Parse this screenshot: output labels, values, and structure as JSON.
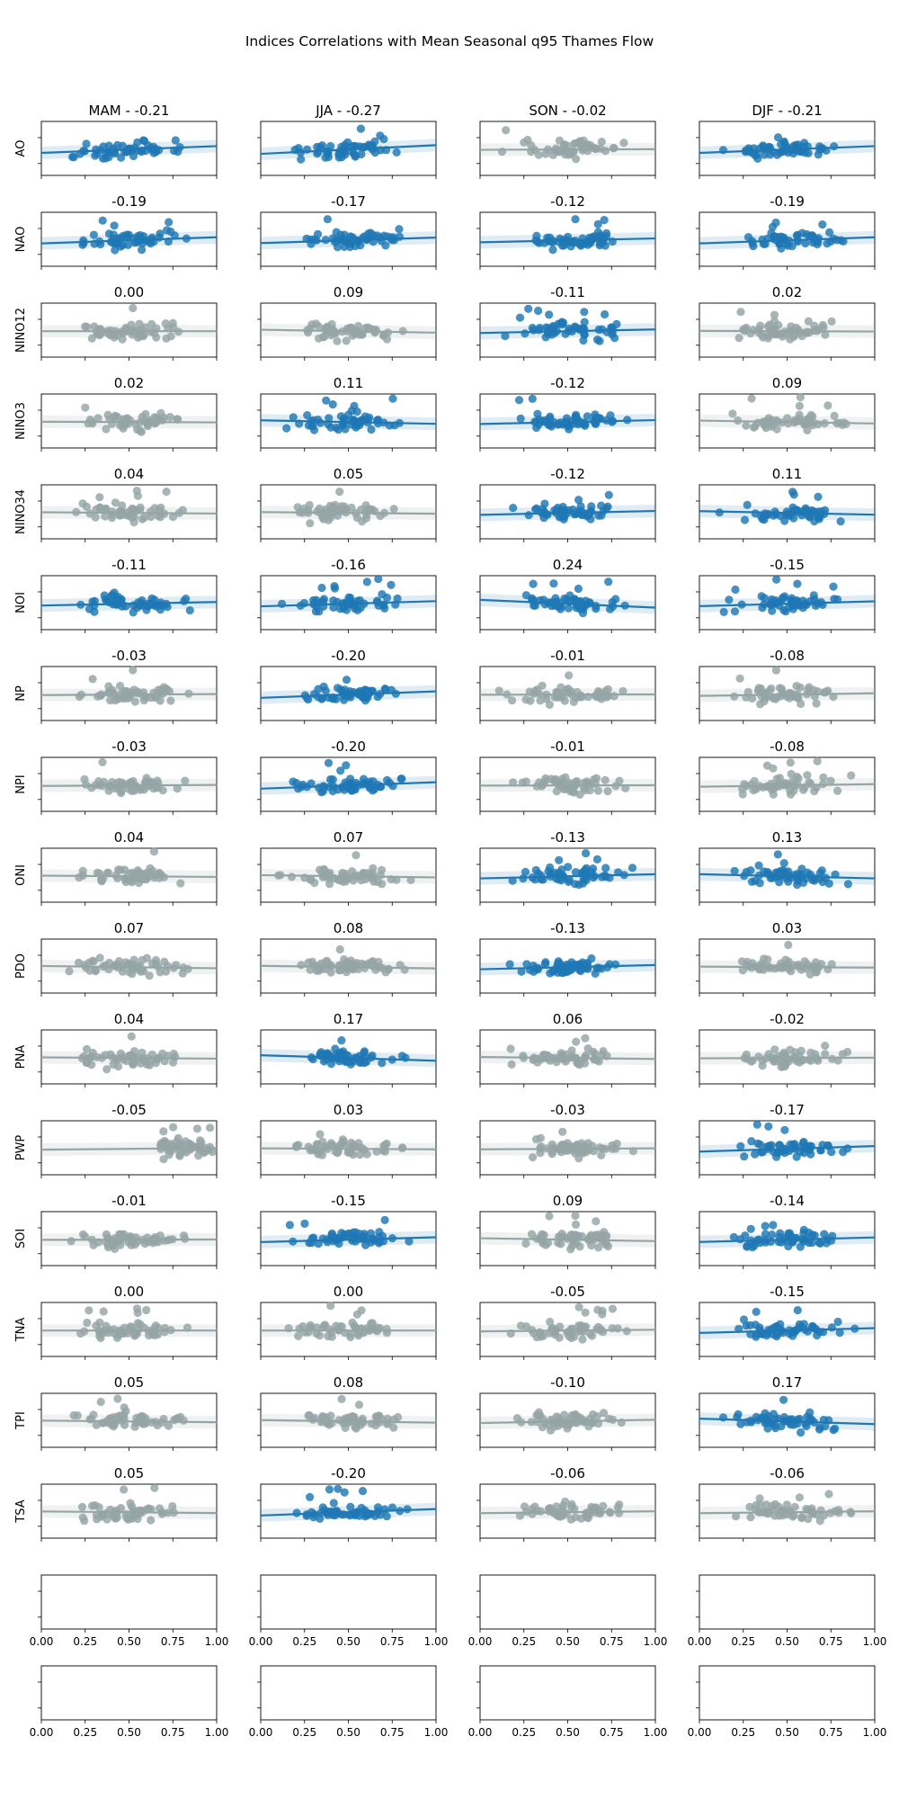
{
  "chart_data": {
    "type": "scatter",
    "title": "Indices Correlations with Mean Seasonal q95 Thames Flow",
    "seasons": [
      "MAM",
      "JJA",
      "SON",
      "DJF"
    ],
    "indices": [
      "AO",
      "NAO",
      "NINO12",
      "NINO3",
      "NINO34",
      "NOI",
      "NP",
      "NPI",
      "ONI",
      "PDO",
      "PNA",
      "PWP",
      "SOI",
      "TNA",
      "TPI",
      "TSA"
    ],
    "correlation_labels": [
      [
        "-0.21",
        "-0.27",
        "-0.02",
        "-0.21"
      ],
      [
        "-0.19",
        "-0.17",
        "-0.12",
        "-0.19"
      ],
      [
        "0.00",
        "0.09",
        "-0.11",
        "0.02"
      ],
      [
        "0.02",
        "0.11",
        "-0.12",
        "0.09"
      ],
      [
        "0.04",
        "0.05",
        "-0.12",
        "0.11"
      ],
      [
        "-0.11",
        "-0.16",
        "0.24",
        "-0.15"
      ],
      [
        "-0.03",
        "-0.20",
        "-0.01",
        "-0.08"
      ],
      [
        "-0.03",
        "-0.20",
        "-0.01",
        "-0.08"
      ],
      [
        "0.04",
        "0.07",
        "-0.13",
        "0.13"
      ],
      [
        "0.07",
        "0.08",
        "-0.13",
        "0.03"
      ],
      [
        "0.04",
        "0.17",
        "0.06",
        "-0.02"
      ],
      [
        "-0.05",
        "0.03",
        "-0.03",
        "-0.17"
      ],
      [
        "-0.01",
        "-0.15",
        "0.09",
        "-0.14"
      ],
      [
        "0.00",
        "0.00",
        "-0.05",
        "-0.15"
      ],
      [
        "0.05",
        "0.08",
        "-0.10",
        "0.17"
      ],
      [
        "0.05",
        "-0.20",
        "-0.06",
        "-0.06"
      ]
    ],
    "significant": [
      [
        true,
        true,
        false,
        true
      ],
      [
        true,
        true,
        true,
        true
      ],
      [
        false,
        false,
        true,
        false
      ],
      [
        false,
        true,
        true,
        false
      ],
      [
        false,
        false,
        true,
        true
      ],
      [
        true,
        true,
        true,
        true
      ],
      [
        false,
        true,
        false,
        false
      ],
      [
        false,
        true,
        false,
        false
      ],
      [
        false,
        false,
        true,
        true
      ],
      [
        false,
        false,
        true,
        false
      ],
      [
        false,
        true,
        false,
        false
      ],
      [
        false,
        false,
        false,
        true
      ],
      [
        false,
        true,
        false,
        true
      ],
      [
        false,
        false,
        false,
        true
      ],
      [
        false,
        false,
        false,
        true
      ],
      [
        false,
        true,
        false,
        false
      ]
    ],
    "x_range": [
      0.0,
      1.0
    ],
    "xticks": [
      "0.00",
      "0.25",
      "0.50",
      "0.75",
      "1.00"
    ],
    "empty_panel_rows": 2,
    "colors": {
      "significant": "#1f77b4",
      "not_significant": "#95a5a6"
    }
  }
}
